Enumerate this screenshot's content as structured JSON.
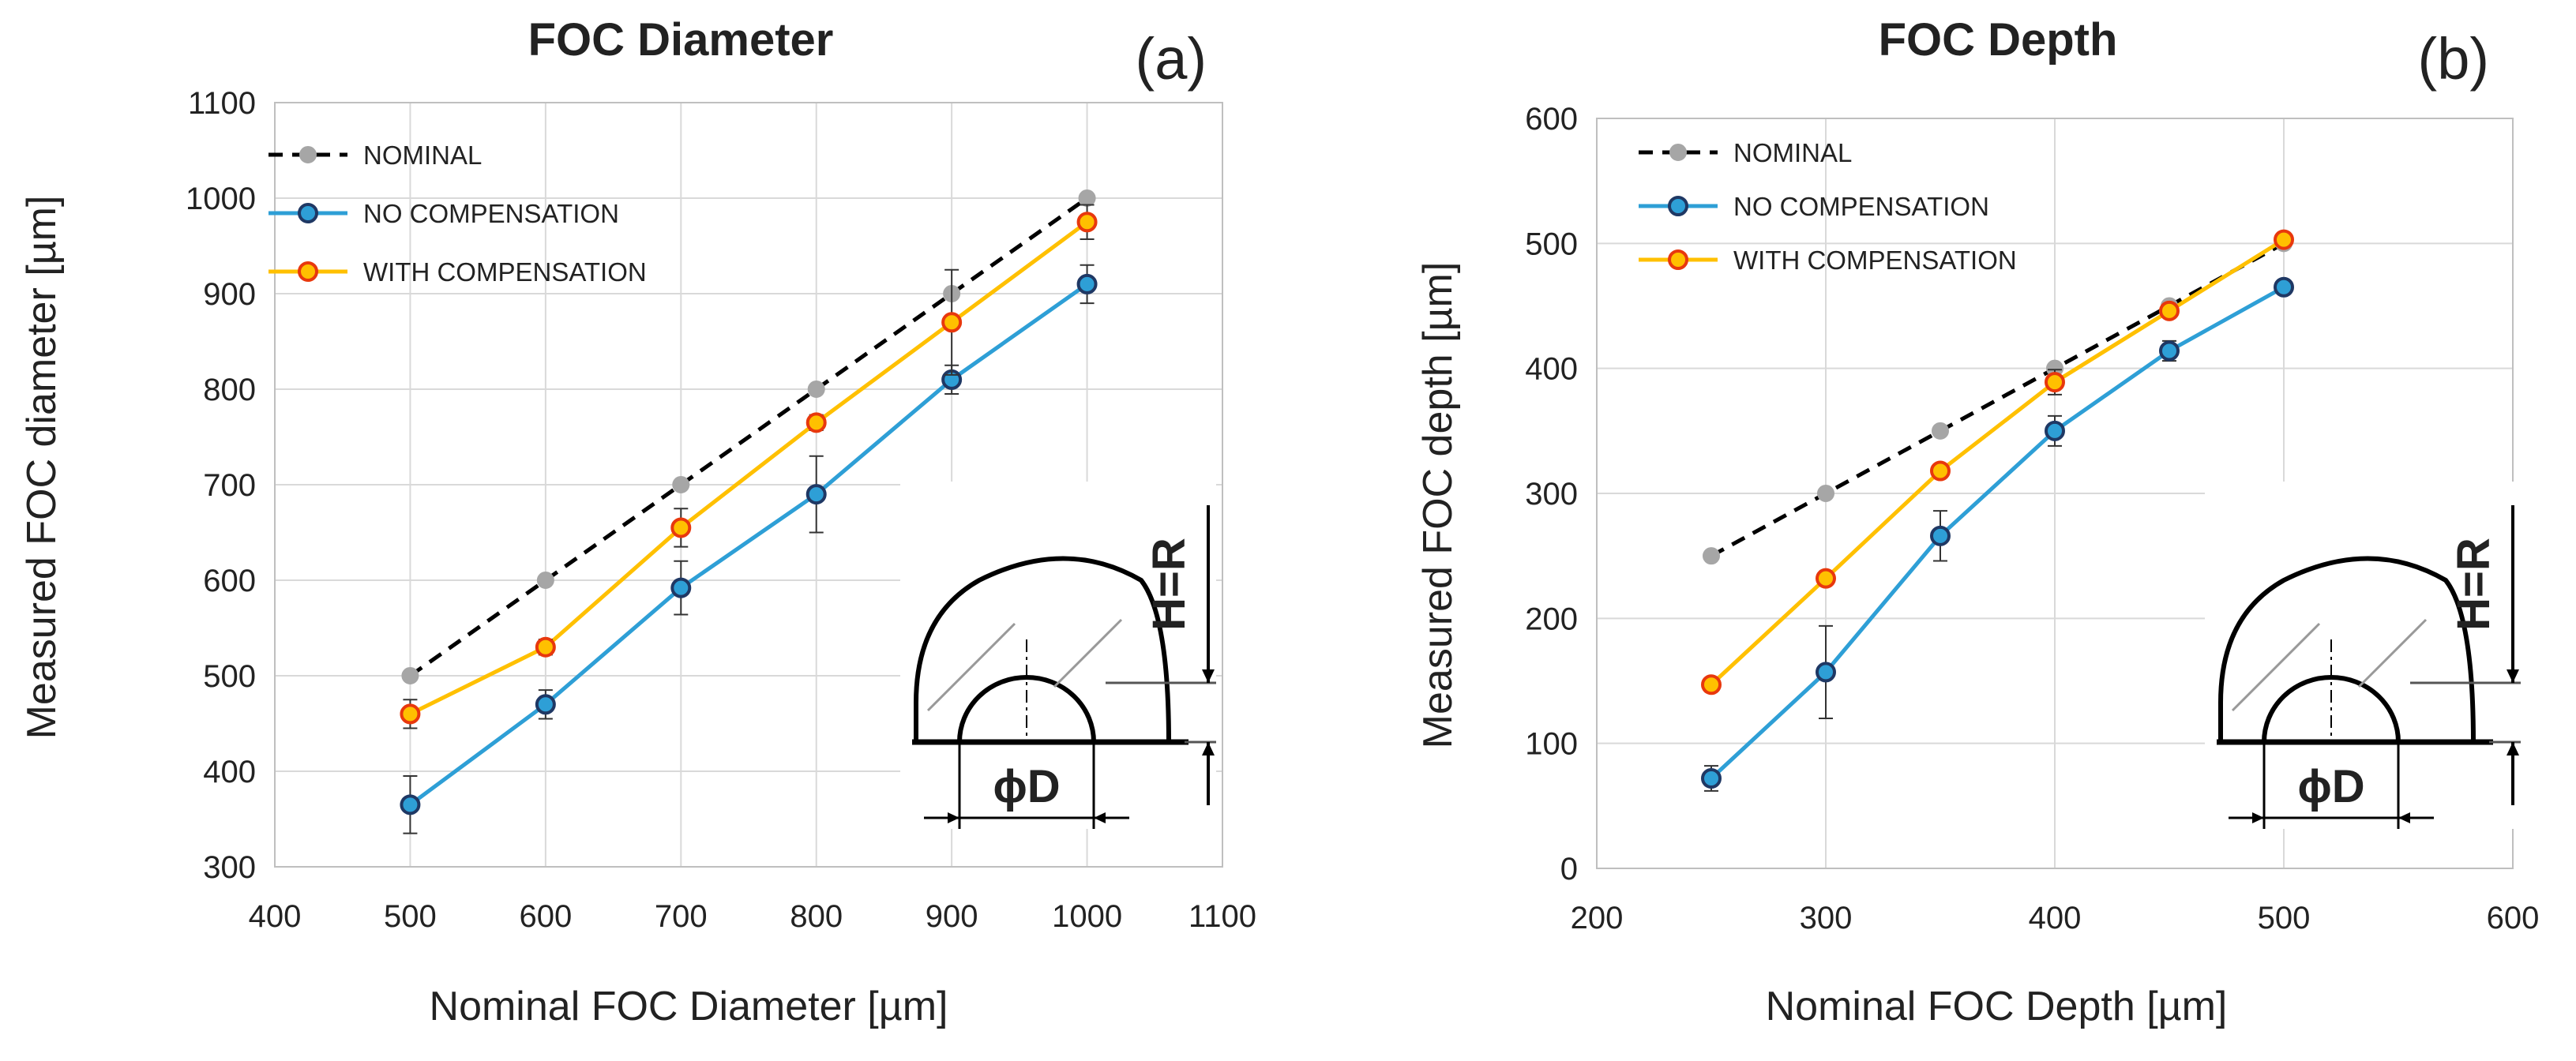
{
  "colors": {
    "nominal_line": "#000000",
    "nominal_marker": "#a6a6a6",
    "no_compensation": "#2e9fd6",
    "no_compensation_marker_fill": "#2e9fd6",
    "no_compensation_marker_edge": "#1f3864",
    "with_compensation": "#ffc000",
    "with_compensation_marker_fill": "#ffc000",
    "with_compensation_marker_edge": "#e8380d",
    "grid": "#d9d9d9"
  },
  "chart_data": [
    {
      "id": "a",
      "type": "line",
      "panel_label": "(a)",
      "title": "FOC Diameter",
      "xlabel": "Nominal FOC Diameter [µm]",
      "ylabel": "Measured FOC diameter [µm]",
      "xlim": [
        400,
        1100
      ],
      "ylim": [
        300,
        1100
      ],
      "xticks": [
        400,
        500,
        600,
        700,
        800,
        900,
        1000,
        1100
      ],
      "yticks": [
        300,
        400,
        500,
        600,
        700,
        800,
        900,
        1000,
        1100
      ],
      "grid": true,
      "legend_position": "top-left",
      "x": [
        500,
        600,
        700,
        800,
        900,
        1000
      ],
      "series": [
        {
          "name": "NOMINAL",
          "style": "dashed",
          "values": [
            500,
            600,
            700,
            800,
            900,
            1000
          ],
          "errors": [
            0,
            0,
            0,
            0,
            0,
            0
          ]
        },
        {
          "name": "NO COMPENSATION",
          "style": "solid",
          "values": [
            365,
            470,
            592,
            690,
            810,
            910
          ],
          "errors": [
            30,
            15,
            28,
            40,
            15,
            20
          ]
        },
        {
          "name": "WITH COMPENSATION",
          "style": "solid",
          "values": [
            460,
            530,
            655,
            765,
            870,
            975
          ],
          "errors": [
            15,
            8,
            20,
            8,
            55,
            18
          ]
        }
      ],
      "inset": {
        "dimension_label": "ϕD",
        "height_label": "H=R"
      }
    },
    {
      "id": "b",
      "type": "line",
      "panel_label": "(b)",
      "title": "FOC Depth",
      "xlabel": "Nominal FOC Depth [µm]",
      "ylabel": "Measured FOC depth [µm]",
      "xlim": [
        200,
        600
      ],
      "ylim": [
        0,
        600
      ],
      "xticks": [
        200,
        300,
        400,
        500,
        600
      ],
      "yticks": [
        0,
        100,
        200,
        300,
        400,
        500,
        600
      ],
      "grid": true,
      "legend_position": "top-left",
      "x": [
        250,
        300,
        350,
        400,
        450,
        500
      ],
      "series": [
        {
          "name": "NOMINAL",
          "style": "dashed",
          "values": [
            250,
            300,
            350,
            400,
            450,
            500
          ],
          "errors": [
            0,
            0,
            0,
            0,
            0,
            0
          ]
        },
        {
          "name": "NO COMPENSATION",
          "style": "solid",
          "values": [
            72,
            157,
            266,
            350,
            414,
            465
          ],
          "errors": [
            10,
            37,
            20,
            12,
            8,
            3
          ]
        },
        {
          "name": "WITH COMPENSATION",
          "style": "solid",
          "values": [
            147,
            232,
            318,
            389,
            446,
            503
          ],
          "errors": [
            5,
            4,
            4,
            10,
            4,
            4
          ]
        }
      ],
      "inset": {
        "dimension_label": "ϕD",
        "height_label": "H=R"
      }
    }
  ]
}
